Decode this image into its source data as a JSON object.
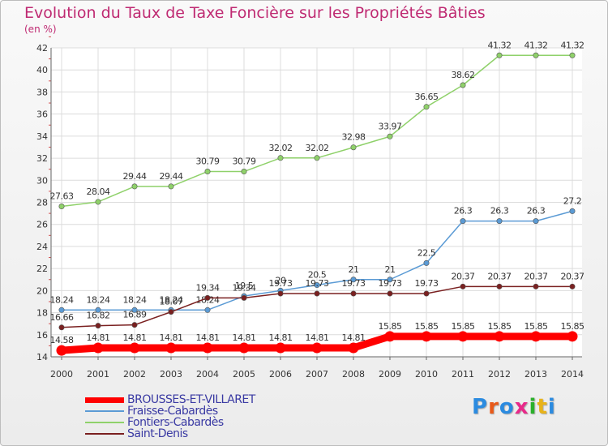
{
  "title": "Evolution du Taux de Taxe Foncière sur les Propriétés Bâties",
  "unit": "(en %)",
  "logo": {
    "letters": [
      "P",
      "r",
      "o",
      "x",
      "i",
      "t",
      "i"
    ],
    "colors": [
      "#2b8be0",
      "#e85a1a",
      "#2b8be0",
      "#e82a8a",
      "#2bb02b",
      "#e8b31a",
      "#2b8be0"
    ]
  },
  "chart_data": {
    "type": "line",
    "x": [
      "2000",
      "2001",
      "2002",
      "2003",
      "2004",
      "2005",
      "2006",
      "2007",
      "2008",
      "2009",
      "2010",
      "2011",
      "2012",
      "2013",
      "2014"
    ],
    "yticks": [
      "14",
      "16",
      "18",
      "20",
      "22",
      "24",
      "26",
      "28",
      "30",
      "32",
      "34",
      "36",
      "38",
      "40",
      "42"
    ],
    "ylim": [
      14,
      42
    ],
    "grid": true,
    "legend_position": "bottom-left",
    "series": [
      {
        "name": "BROUSSES-ET-VILLARET",
        "color": "#ff0000",
        "thick": true,
        "values": [
          14.58,
          14.81,
          14.81,
          14.81,
          14.81,
          14.81,
          14.81,
          14.81,
          14.81,
          15.85,
          15.85,
          15.85,
          15.85,
          15.85,
          15.85
        ],
        "labels": [
          "14.58",
          "14.81",
          "14.81",
          "14.81",
          "14.81",
          "14.81",
          "14.81",
          "14.81",
          "14.81",
          "15.85",
          "15.85",
          "15.85",
          "15.85",
          "15.85",
          "15.85"
        ]
      },
      {
        "name": "Fraisse-Cabardès",
        "color": "#5b9bd5",
        "thick": false,
        "values": [
          18.24,
          18.24,
          18.24,
          18.24,
          18.24,
          19.5,
          20,
          20.5,
          21,
          21,
          22.5,
          26.3,
          26.3,
          26.3,
          27.2
        ],
        "labels": [
          "18.24",
          "18.24",
          "18.24",
          "18.24",
          "18.24",
          "19.5",
          "20",
          "20.5",
          "21",
          "21",
          "22.5",
          "26.3",
          "26.3",
          "26.3",
          "27.2"
        ]
      },
      {
        "name": "Fontiers-Cabardès",
        "color": "#8fd16a",
        "thick": false,
        "values": [
          27.63,
          28.04,
          29.44,
          29.44,
          30.79,
          30.79,
          32.02,
          32.02,
          32.98,
          33.97,
          36.65,
          38.62,
          41.32,
          41.32,
          41.32
        ],
        "labels": [
          "27.63",
          "28.04",
          "29.44",
          "29.44",
          "30.79",
          "30.79",
          "32.02",
          "32.02",
          "32.98",
          "33.97",
          "36.65",
          "38.62",
          "41.32",
          "41.32",
          "41.32"
        ]
      },
      {
        "name": "Saint-Denis",
        "color": "#7a2020",
        "thick": false,
        "values": [
          16.66,
          16.82,
          16.89,
          18.07,
          19.34,
          19.34,
          19.73,
          19.73,
          19.73,
          19.73,
          19.73,
          20.37,
          20.37,
          20.37,
          20.37
        ],
        "labels": [
          "16.66",
          "16.82",
          "16.89",
          "18.07",
          "19.34",
          "19.34",
          "19.73",
          "19.73",
          "19.73",
          "19.73",
          "19.73",
          "20.37",
          "20.37",
          "20.37",
          "20.37"
        ]
      }
    ]
  }
}
